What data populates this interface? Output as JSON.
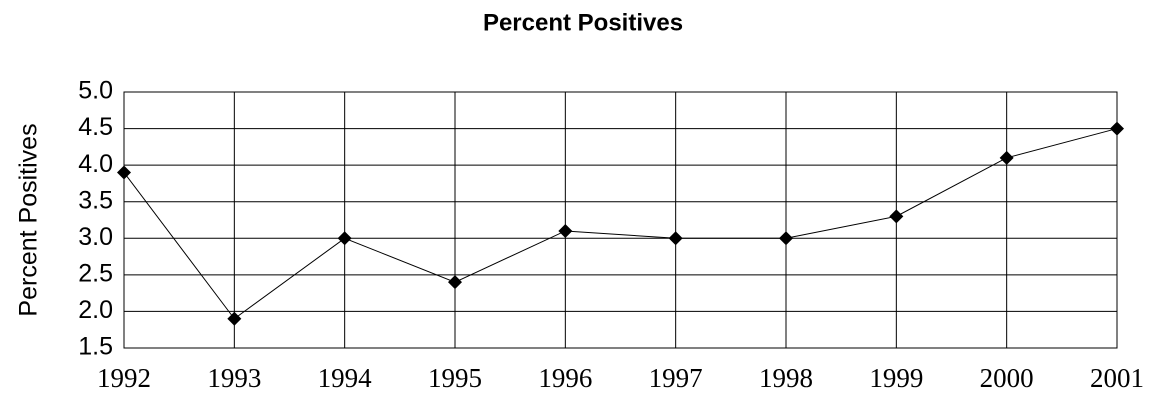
{
  "chart_data": {
    "type": "line",
    "title": "Percent Positives",
    "y_label": "Percent Positives",
    "categories": [
      "1992",
      "1993",
      "1994",
      "1995",
      "1996",
      "1997",
      "1998",
      "1999",
      "2000",
      "2001"
    ],
    "values": [
      3.9,
      1.9,
      3.0,
      2.4,
      3.1,
      3.0,
      3.0,
      3.3,
      4.1,
      4.5
    ],
    "color": "#000000",
    "marker": "diamond",
    "ylim": [
      1.5,
      5.0
    ],
    "yticks": [
      1.5,
      {
        "value": 2,
        "label": "2.0"
      },
      2.5,
      {
        "value": 3,
        "label": "3.0"
      },
      3.5,
      {
        "value": 4,
        "label": "4.0"
      },
      4.5,
      {
        "value": 5,
        "label": "5.0"
      }
    ],
    "grid": true
  }
}
